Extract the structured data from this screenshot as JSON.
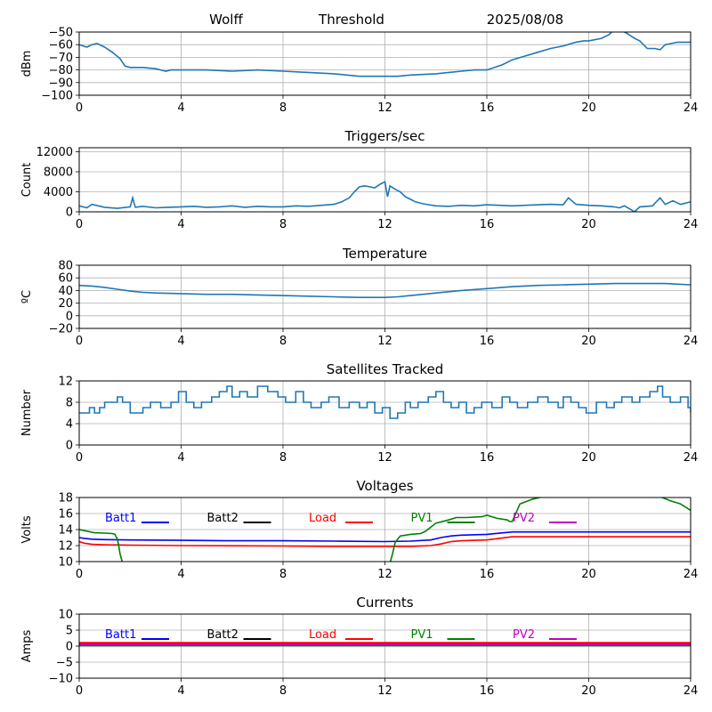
{
  "header": {
    "station": "Wolff",
    "product": "Threshold",
    "date": "2025/08/08"
  },
  "chart_data": [
    {
      "type": "line",
      "title": "",
      "xlabel": "",
      "ylabel": "dBm",
      "xlim": [
        0,
        24
      ],
      "ylim": [
        -100,
        -50
      ],
      "xticks": [
        "0",
        "4",
        "8",
        "12",
        "16",
        "20",
        "24"
      ],
      "yticks": [
        "-100",
        "-90",
        "-80",
        "-70",
        "-60",
        "-50"
      ],
      "grid": true,
      "series": [
        {
          "color": "#1f77b4",
          "x": [
            0,
            0.3,
            0.5,
            0.7,
            1.0,
            1.3,
            1.6,
            1.8,
            2.0,
            2.5,
            3.0,
            3.2,
            3.4,
            3.6,
            3.8,
            4.0,
            5.0,
            6.0,
            7.0,
            8.0,
            9.0,
            10.0,
            10.5,
            11.0,
            11.5,
            12.0,
            12.5,
            13.0,
            14.0,
            15.0,
            15.5,
            16.0,
            16.3,
            16.6,
            17.0,
            17.5,
            18.0,
            18.5,
            19.0,
            19.5,
            19.8,
            20.0,
            20.5,
            20.8,
            21.0,
            21.3,
            21.5,
            21.8,
            22.0,
            22.3,
            22.6,
            22.8,
            23.0,
            23.5,
            24.0
          ],
          "y": [
            -60,
            -62,
            -60,
            -59,
            -62,
            -66,
            -71,
            -77,
            -78,
            -78,
            -79,
            -80,
            -81,
            -80,
            -80,
            -80,
            -80,
            -81,
            -80,
            -81,
            -82,
            -83,
            -84,
            -85,
            -85,
            -85,
            -85,
            -84,
            -83,
            -81,
            -80,
            -80,
            -78,
            -76,
            -72,
            -69,
            -66,
            -63,
            -61,
            -58,
            -57,
            -57,
            -55,
            -52,
            -48,
            -49,
            -51,
            -55,
            -57,
            -63,
            -63,
            -64,
            -60,
            -58,
            -58
          ]
        }
      ]
    },
    {
      "type": "line",
      "title": "Triggers/sec",
      "xlabel": "",
      "ylabel": "Count",
      "xlim": [
        0,
        24
      ],
      "ylim": [
        0,
        12800
      ],
      "xticks": [
        "0",
        "4",
        "8",
        "12",
        "16",
        "20",
        "24"
      ],
      "yticks": [
        "0",
        "4000",
        "8000",
        "12000"
      ],
      "yticks_values": [
        0,
        4000,
        8000,
        12000
      ],
      "grid": true,
      "series": [
        {
          "color": "#1f77b4",
          "x": [
            0,
            0.3,
            0.5,
            1.0,
            1.5,
            2.0,
            2.1,
            2.2,
            2.5,
            3.0,
            3.5,
            4.0,
            4.5,
            5.0,
            5.5,
            6.0,
            6.5,
            7.0,
            7.5,
            8.0,
            8.5,
            9.0,
            9.5,
            10.0,
            10.3,
            10.6,
            10.8,
            11.0,
            11.2,
            11.4,
            11.6,
            11.8,
            12.0,
            12.1,
            12.2,
            12.4,
            12.6,
            12.8,
            13.0,
            13.2,
            13.5,
            14.0,
            14.5,
            15.0,
            15.5,
            16.0,
            16.5,
            17.0,
            17.5,
            18.0,
            18.5,
            19.0,
            19.2,
            19.5,
            20.0,
            20.5,
            21.0,
            21.2,
            21.4,
            21.6,
            21.8,
            22.0,
            22.5,
            22.8,
            23.0,
            23.3,
            23.6,
            24.0
          ],
          "y": [
            1200,
            800,
            1500,
            900,
            700,
            1000,
            2800,
            900,
            1100,
            800,
            900,
            1000,
            1100,
            900,
            1000,
            1200,
            900,
            1100,
            1000,
            1000,
            1200,
            1100,
            1300,
            1500,
            2000,
            2800,
            4000,
            5000,
            5200,
            5000,
            4800,
            5500,
            6000,
            3000,
            5200,
            4500,
            4000,
            3000,
            2500,
            2000,
            1600,
            1200,
            1100,
            1300,
            1200,
            1400,
            1300,
            1200,
            1300,
            1400,
            1500,
            1400,
            2800,
            1500,
            1300,
            1200,
            1000,
            800,
            1200,
            600,
            0,
            1000,
            1200,
            2800,
            1500,
            2200,
            1500,
            2000
          ]
        }
      ]
    },
    {
      "type": "line",
      "title": "Temperature",
      "xlabel": "",
      "ylabel": "°C",
      "xlim": [
        0,
        24
      ],
      "ylim": [
        -20,
        80
      ],
      "xticks": [
        "0",
        "4",
        "8",
        "12",
        "16",
        "20",
        "24"
      ],
      "yticks": [
        "-20",
        "0",
        "20",
        "40",
        "60",
        "80"
      ],
      "grid": true,
      "series": [
        {
          "color": "#1f77b4",
          "x": [
            0,
            0.5,
            1.0,
            1.5,
            2.0,
            2.5,
            3.0,
            4.0,
            5.0,
            6.0,
            7.0,
            8.0,
            9.0,
            10.0,
            11.0,
            12.0,
            12.5,
            13.0,
            13.5,
            14.0,
            14.5,
            15.0,
            16.0,
            17.0,
            18.0,
            19.0,
            20.0,
            21.0,
            22.0,
            23.0,
            23.5,
            24.0
          ],
          "y": [
            48,
            47,
            45,
            42,
            39,
            37,
            36,
            35,
            34,
            34,
            33,
            32,
            31,
            30,
            29,
            29,
            30,
            32,
            34,
            36,
            38,
            40,
            43,
            46,
            48,
            49,
            50,
            51,
            51,
            51,
            50,
            49
          ]
        }
      ]
    },
    {
      "type": "line",
      "title": "Satellites Tracked",
      "xlabel": "",
      "ylabel": "Number",
      "xlim": [
        0,
        24
      ],
      "ylim": [
        0,
        12
      ],
      "xticks": [
        "0",
        "4",
        "8",
        "12",
        "16",
        "20",
        "24"
      ],
      "yticks": [
        "0",
        "4",
        "8",
        "12"
      ],
      "grid": true,
      "series": [
        {
          "color": "#1f77b4",
          "step": true,
          "x": [
            0,
            0.4,
            0.6,
            0.8,
            1.0,
            1.5,
            1.7,
            2.0,
            2.5,
            2.8,
            3.2,
            3.6,
            3.9,
            4.2,
            4.5,
            4.8,
            5.2,
            5.5,
            5.8,
            6.0,
            6.3,
            6.6,
            7.0,
            7.4,
            7.8,
            8.1,
            8.5,
            8.8,
            9.1,
            9.5,
            9.8,
            10.2,
            10.6,
            11.0,
            11.3,
            11.6,
            11.9,
            12.2,
            12.5,
            12.8,
            13.0,
            13.3,
            13.7,
            14.0,
            14.3,
            14.6,
            14.9,
            15.2,
            15.5,
            15.8,
            16.2,
            16.6,
            16.9,
            17.2,
            17.6,
            18.0,
            18.4,
            18.8,
            19.0,
            19.3,
            19.6,
            19.9,
            20.3,
            20.7,
            21.0,
            21.3,
            21.7,
            22.0,
            22.4,
            22.7,
            22.9,
            23.2,
            23.6,
            23.9,
            24.0
          ],
          "y": [
            6,
            7,
            6,
            7,
            8,
            9,
            8,
            6,
            7,
            8,
            7,
            8,
            10,
            8,
            7,
            8,
            9,
            10,
            11,
            9,
            10,
            9,
            11,
            10,
            9,
            8,
            10,
            8,
            7,
            8,
            9,
            7,
            8,
            7,
            8,
            6,
            7,
            5,
            6,
            8,
            7,
            8,
            9,
            10,
            8,
            7,
            8,
            6,
            7,
            8,
            7,
            9,
            8,
            7,
            8,
            9,
            8,
            7,
            9,
            8,
            7,
            6,
            8,
            7,
            8,
            9,
            8,
            9,
            10,
            11,
            9,
            8,
            9,
            7,
            6
          ]
        }
      ]
    },
    {
      "type": "line",
      "title": "Voltages",
      "xlabel": "",
      "ylabel": "Volts",
      "xlim": [
        0,
        24
      ],
      "ylim": [
        10,
        18
      ],
      "xticks": [
        "0",
        "4",
        "8",
        "12",
        "16",
        "20",
        "24"
      ],
      "yticks": [
        "10",
        "12",
        "14",
        "16",
        "18"
      ],
      "grid": true,
      "legend": "top, single row",
      "series": [
        {
          "name": "Batt1",
          "color": "#0000ff",
          "x": [
            0,
            0.2,
            0.5,
            1.0,
            2.0,
            4.0,
            6.0,
            8.0,
            10.0,
            12.0,
            13.0,
            13.8,
            14.2,
            14.6,
            15.0,
            16.0,
            17.0,
            18.0,
            20.0,
            22.0,
            24.0
          ],
          "y": [
            13.0,
            12.9,
            12.8,
            12.75,
            12.7,
            12.65,
            12.6,
            12.6,
            12.55,
            12.5,
            12.55,
            12.7,
            13.0,
            13.2,
            13.3,
            13.4,
            13.7,
            13.7,
            13.7,
            13.7,
            13.7
          ]
        },
        {
          "name": "Batt2",
          "color": "#000000",
          "x": [],
          "y": []
        },
        {
          "name": "Load",
          "color": "#ff0000",
          "x": [
            0,
            0.2,
            0.5,
            1.0,
            2.0,
            4.0,
            6.0,
            8.0,
            10.0,
            12.0,
            13.0,
            13.8,
            14.2,
            14.6,
            15.0,
            16.0,
            17.0,
            18.0,
            20.0,
            22.0,
            24.0
          ],
          "y": [
            12.5,
            12.3,
            12.15,
            12.1,
            12.05,
            12.0,
            11.98,
            11.95,
            11.9,
            11.9,
            11.9,
            12.0,
            12.2,
            12.5,
            12.6,
            12.7,
            13.1,
            13.1,
            13.1,
            13.1,
            13.1
          ]
        },
        {
          "name": "PV1",
          "color": "#008000",
          "x": [
            0,
            0.3,
            0.6,
            1.0,
            1.3,
            1.4,
            1.5,
            1.55,
            1.6,
            1.7,
            12.2,
            12.3,
            12.4,
            12.6,
            13.0,
            13.4,
            13.6,
            14.0,
            14.5,
            14.8,
            15.2,
            15.8,
            16.0,
            16.4,
            16.8,
            16.9,
            17.0,
            17.3,
            17.8,
            18.2,
            22.8,
            23.2,
            23.6,
            24.0
          ],
          "y": [
            14.0,
            13.8,
            13.6,
            13.55,
            13.5,
            13.4,
            12.8,
            12.0,
            11.0,
            9.8,
            9.8,
            11.0,
            12.4,
            13.2,
            13.4,
            13.5,
            13.8,
            14.8,
            15.2,
            15.5,
            15.5,
            15.6,
            15.8,
            15.4,
            15.2,
            15.0,
            15.0,
            17.2,
            17.8,
            18.1,
            18.1,
            17.6,
            17.2,
            16.4
          ]
        },
        {
          "name": "PV2",
          "color": "#bf00bf",
          "x": [],
          "y": []
        }
      ]
    },
    {
      "type": "line",
      "title": "Currents",
      "xlabel": "",
      "ylabel": "Amps",
      "xlim": [
        0,
        24
      ],
      "ylim": [
        -10,
        10
      ],
      "xticks": [
        "0",
        "4",
        "8",
        "12",
        "16",
        "20",
        "24"
      ],
      "yticks": [
        "-10",
        "-5",
        "0",
        "5",
        "10"
      ],
      "grid": true,
      "legend": "top, single row",
      "series": [
        {
          "name": "Batt1",
          "color": "#0000ff",
          "x": [
            0,
            24
          ],
          "y": [
            0.6,
            0.6
          ]
        },
        {
          "name": "Batt2",
          "color": "#000000",
          "x": [
            0,
            24
          ],
          "y": [
            0.4,
            0.4
          ]
        },
        {
          "name": "Load",
          "color": "#ff0000",
          "x": [
            0,
            24
          ],
          "y": [
            1.0,
            1.0
          ]
        },
        {
          "name": "PV1",
          "color": "#008000",
          "x": [
            0,
            24
          ],
          "y": [
            0.2,
            0.2
          ]
        },
        {
          "name": "PV2",
          "color": "#bf00bf",
          "x": [
            0,
            24
          ],
          "y": [
            0.5,
            0.5
          ]
        }
      ]
    }
  ]
}
